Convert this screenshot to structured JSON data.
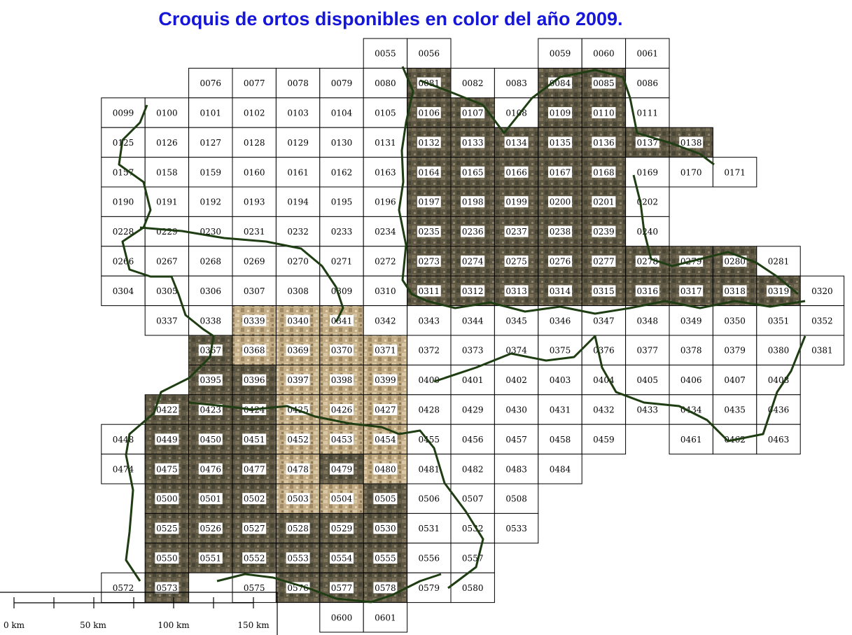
{
  "title": "Croquis de ortos disponibles  en color del año 2009.",
  "scale": {
    "labels": [
      "0 km",
      "50 km",
      "100 km",
      "150 km"
    ]
  },
  "colors": {
    "title": "#1616d8",
    "border": "#1f3d12",
    "ortho": "#5f5845",
    "ortho_sand": "#bfa983"
  },
  "sheets": [
    {
      "id": "0055",
      "row": 0,
      "col": 8
    },
    {
      "id": "0056",
      "row": 0,
      "col": 9
    },
    {
      "id": "0059",
      "row": 0,
      "col": 12
    },
    {
      "id": "0060",
      "row": 0,
      "col": 13
    },
    {
      "id": "0061",
      "row": 0,
      "col": 14
    },
    {
      "id": "0076",
      "row": 1,
      "col": 4
    },
    {
      "id": "0077",
      "row": 1,
      "col": 5
    },
    {
      "id": "0078",
      "row": 1,
      "col": 6
    },
    {
      "id": "0079",
      "row": 1,
      "col": 7
    },
    {
      "id": "0080",
      "row": 1,
      "col": 8
    },
    {
      "id": "0081",
      "row": 1,
      "col": 9,
      "ortho": true
    },
    {
      "id": "0082",
      "row": 1,
      "col": 10
    },
    {
      "id": "0083",
      "row": 1,
      "col": 11
    },
    {
      "id": "0084",
      "row": 1,
      "col": 12,
      "ortho": true
    },
    {
      "id": "0085",
      "row": 1,
      "col": 13,
      "ortho": true
    },
    {
      "id": "0086",
      "row": 1,
      "col": 14
    },
    {
      "id": "0099",
      "row": 2,
      "col": 2
    },
    {
      "id": "0100",
      "row": 2,
      "col": 3
    },
    {
      "id": "0101",
      "row": 2,
      "col": 4
    },
    {
      "id": "0102",
      "row": 2,
      "col": 5
    },
    {
      "id": "0103",
      "row": 2,
      "col": 6
    },
    {
      "id": "0104",
      "row": 2,
      "col": 7
    },
    {
      "id": "0105",
      "row": 2,
      "col": 8
    },
    {
      "id": "0106",
      "row": 2,
      "col": 9,
      "ortho": true
    },
    {
      "id": "0107",
      "row": 2,
      "col": 10,
      "ortho": true
    },
    {
      "id": "0108",
      "row": 2,
      "col": 11
    },
    {
      "id": "0109",
      "row": 2,
      "col": 12,
      "ortho": true
    },
    {
      "id": "0110",
      "row": 2,
      "col": 13,
      "ortho": true
    },
    {
      "id": "0111",
      "row": 2,
      "col": 14
    },
    {
      "id": "0125",
      "row": 3,
      "col": 2
    },
    {
      "id": "0126",
      "row": 3,
      "col": 3
    },
    {
      "id": "0127",
      "row": 3,
      "col": 4
    },
    {
      "id": "0128",
      "row": 3,
      "col": 5
    },
    {
      "id": "0129",
      "row": 3,
      "col": 6
    },
    {
      "id": "0130",
      "row": 3,
      "col": 7
    },
    {
      "id": "0131",
      "row": 3,
      "col": 8
    },
    {
      "id": "0132",
      "row": 3,
      "col": 9,
      "ortho": true
    },
    {
      "id": "0133",
      "row": 3,
      "col": 10,
      "ortho": true
    },
    {
      "id": "0134",
      "row": 3,
      "col": 11,
      "ortho": true
    },
    {
      "id": "0135",
      "row": 3,
      "col": 12,
      "ortho": true
    },
    {
      "id": "0136",
      "row": 3,
      "col": 13,
      "ortho": true
    },
    {
      "id": "0137",
      "row": 3,
      "col": 14,
      "ortho": true
    },
    {
      "id": "0138",
      "row": 3,
      "col": 15,
      "ortho": true
    },
    {
      "id": "0157",
      "row": 4,
      "col": 2
    },
    {
      "id": "0158",
      "row": 4,
      "col": 3
    },
    {
      "id": "0159",
      "row": 4,
      "col": 4
    },
    {
      "id": "0160",
      "row": 4,
      "col": 5
    },
    {
      "id": "0161",
      "row": 4,
      "col": 6
    },
    {
      "id": "0162",
      "row": 4,
      "col": 7
    },
    {
      "id": "0163",
      "row": 4,
      "col": 8
    },
    {
      "id": "0164",
      "row": 4,
      "col": 9,
      "ortho": true
    },
    {
      "id": "0165",
      "row": 4,
      "col": 10,
      "ortho": true
    },
    {
      "id": "0166",
      "row": 4,
      "col": 11,
      "ortho": true
    },
    {
      "id": "0167",
      "row": 4,
      "col": 12,
      "ortho": true
    },
    {
      "id": "0168",
      "row": 4,
      "col": 13,
      "ortho": true
    },
    {
      "id": "0169",
      "row": 4,
      "col": 14
    },
    {
      "id": "0170",
      "row": 4,
      "col": 15
    },
    {
      "id": "0171",
      "row": 4,
      "col": 16
    },
    {
      "id": "0190",
      "row": 5,
      "col": 2
    },
    {
      "id": "0191",
      "row": 5,
      "col": 3
    },
    {
      "id": "0192",
      "row": 5,
      "col": 4
    },
    {
      "id": "0193",
      "row": 5,
      "col": 5
    },
    {
      "id": "0194",
      "row": 5,
      "col": 6
    },
    {
      "id": "0195",
      "row": 5,
      "col": 7
    },
    {
      "id": "0196",
      "row": 5,
      "col": 8
    },
    {
      "id": "0197",
      "row": 5,
      "col": 9,
      "ortho": true
    },
    {
      "id": "0198",
      "row": 5,
      "col": 10,
      "ortho": true
    },
    {
      "id": "0199",
      "row": 5,
      "col": 11,
      "ortho": true
    },
    {
      "id": "0200",
      "row": 5,
      "col": 12,
      "ortho": true
    },
    {
      "id": "0201",
      "row": 5,
      "col": 13,
      "ortho": true
    },
    {
      "id": "0202",
      "row": 5,
      "col": 14
    },
    {
      "id": "0228",
      "row": 6,
      "col": 2
    },
    {
      "id": "0229",
      "row": 6,
      "col": 3
    },
    {
      "id": "0230",
      "row": 6,
      "col": 4
    },
    {
      "id": "0231",
      "row": 6,
      "col": 5
    },
    {
      "id": "0232",
      "row": 6,
      "col": 6
    },
    {
      "id": "0233",
      "row": 6,
      "col": 7
    },
    {
      "id": "0234",
      "row": 6,
      "col": 8
    },
    {
      "id": "0235",
      "row": 6,
      "col": 9,
      "ortho": true
    },
    {
      "id": "0236",
      "row": 6,
      "col": 10,
      "ortho": true
    },
    {
      "id": "0237",
      "row": 6,
      "col": 11,
      "ortho": true
    },
    {
      "id": "0238",
      "row": 6,
      "col": 12,
      "ortho": true
    },
    {
      "id": "0239",
      "row": 6,
      "col": 13,
      "ortho": true
    },
    {
      "id": "0240",
      "row": 6,
      "col": 14
    },
    {
      "id": "0266",
      "row": 7,
      "col": 2
    },
    {
      "id": "0267",
      "row": 7,
      "col": 3
    },
    {
      "id": "0268",
      "row": 7,
      "col": 4
    },
    {
      "id": "0269",
      "row": 7,
      "col": 5
    },
    {
      "id": "0270",
      "row": 7,
      "col": 6
    },
    {
      "id": "0271",
      "row": 7,
      "col": 7
    },
    {
      "id": "0272",
      "row": 7,
      "col": 8
    },
    {
      "id": "0273",
      "row": 7,
      "col": 9,
      "ortho": true
    },
    {
      "id": "0274",
      "row": 7,
      "col": 10,
      "ortho": true
    },
    {
      "id": "0275",
      "row": 7,
      "col": 11,
      "ortho": true
    },
    {
      "id": "0276",
      "row": 7,
      "col": 12,
      "ortho": true
    },
    {
      "id": "0277",
      "row": 7,
      "col": 13,
      "ortho": true
    },
    {
      "id": "0278",
      "row": 7,
      "col": 14,
      "ortho": true
    },
    {
      "id": "0279",
      "row": 7,
      "col": 15,
      "ortho": true
    },
    {
      "id": "0280",
      "row": 7,
      "col": 16,
      "ortho": true
    },
    {
      "id": "0281",
      "row": 7,
      "col": 17
    },
    {
      "id": "0304",
      "row": 8,
      "col": 2
    },
    {
      "id": "0305",
      "row": 8,
      "col": 3
    },
    {
      "id": "0306",
      "row": 8,
      "col": 4
    },
    {
      "id": "0307",
      "row": 8,
      "col": 5
    },
    {
      "id": "0308",
      "row": 8,
      "col": 6
    },
    {
      "id": "0309",
      "row": 8,
      "col": 7
    },
    {
      "id": "0310",
      "row": 8,
      "col": 8
    },
    {
      "id": "0311",
      "row": 8,
      "col": 9,
      "ortho": true
    },
    {
      "id": "0312",
      "row": 8,
      "col": 10,
      "ortho": true
    },
    {
      "id": "0313",
      "row": 8,
      "col": 11,
      "ortho": true
    },
    {
      "id": "0314",
      "row": 8,
      "col": 12,
      "ortho": true
    },
    {
      "id": "0315",
      "row": 8,
      "col": 13,
      "ortho": true
    },
    {
      "id": "0316",
      "row": 8,
      "col": 14,
      "ortho": true
    },
    {
      "id": "0317",
      "row": 8,
      "col": 15,
      "ortho": true
    },
    {
      "id": "0318",
      "row": 8,
      "col": 16,
      "ortho": true
    },
    {
      "id": "0319",
      "row": 8,
      "col": 17,
      "ortho": true
    },
    {
      "id": "0320",
      "row": 8,
      "col": 18
    },
    {
      "id": "0337",
      "row": 9,
      "col": 3
    },
    {
      "id": "0338",
      "row": 9,
      "col": 4
    },
    {
      "id": "0339",
      "row": 9,
      "col": 5,
      "ortho": true,
      "sand": true
    },
    {
      "id": "0340",
      "row": 9,
      "col": 6,
      "ortho": true,
      "sand": true
    },
    {
      "id": "0341",
      "row": 9,
      "col": 7,
      "ortho": true,
      "sand": true
    },
    {
      "id": "0342",
      "row": 9,
      "col": 8
    },
    {
      "id": "0343",
      "row": 9,
      "col": 9
    },
    {
      "id": "0344",
      "row": 9,
      "col": 10
    },
    {
      "id": "0345",
      "row": 9,
      "col": 11
    },
    {
      "id": "0346",
      "row": 9,
      "col": 12
    },
    {
      "id": "0347",
      "row": 9,
      "col": 13
    },
    {
      "id": "0348",
      "row": 9,
      "col": 14
    },
    {
      "id": "0349",
      "row": 9,
      "col": 15
    },
    {
      "id": "0350",
      "row": 9,
      "col": 16
    },
    {
      "id": "0351",
      "row": 9,
      "col": 17
    },
    {
      "id": "0352",
      "row": 9,
      "col": 18
    },
    {
      "id": "0367",
      "row": 10,
      "col": 4,
      "ortho": true
    },
    {
      "id": "0368",
      "row": 10,
      "col": 5,
      "ortho": true,
      "sand": true
    },
    {
      "id": "0369",
      "row": 10,
      "col": 6,
      "ortho": true,
      "sand": true
    },
    {
      "id": "0370",
      "row": 10,
      "col": 7,
      "ortho": true,
      "sand": true
    },
    {
      "id": "0371",
      "row": 10,
      "col": 8,
      "ortho": true,
      "sand": true
    },
    {
      "id": "0372",
      "row": 10,
      "col": 9
    },
    {
      "id": "0373",
      "row": 10,
      "col": 10
    },
    {
      "id": "0374",
      "row": 10,
      "col": 11
    },
    {
      "id": "0375",
      "row": 10,
      "col": 12
    },
    {
      "id": "0376",
      "row": 10,
      "col": 13
    },
    {
      "id": "0377",
      "row": 10,
      "col": 14
    },
    {
      "id": "0378",
      "row": 10,
      "col": 15
    },
    {
      "id": "0379",
      "row": 10,
      "col": 16
    },
    {
      "id": "0380",
      "row": 10,
      "col": 17
    },
    {
      "id": "0381",
      "row": 10,
      "col": 18
    },
    {
      "id": "0395",
      "row": 11,
      "col": 4,
      "ortho": true
    },
    {
      "id": "0396",
      "row": 11,
      "col": 5,
      "ortho": true
    },
    {
      "id": "0397",
      "row": 11,
      "col": 6,
      "ortho": true,
      "sand": true
    },
    {
      "id": "0398",
      "row": 11,
      "col": 7,
      "ortho": true,
      "sand": true
    },
    {
      "id": "0399",
      "row": 11,
      "col": 8,
      "ortho": true,
      "sand": true
    },
    {
      "id": "0400",
      "row": 11,
      "col": 9
    },
    {
      "id": "0401",
      "row": 11,
      "col": 10
    },
    {
      "id": "0402",
      "row": 11,
      "col": 11
    },
    {
      "id": "0403",
      "row": 11,
      "col": 12
    },
    {
      "id": "0404",
      "row": 11,
      "col": 13
    },
    {
      "id": "0405",
      "row": 11,
      "col": 14
    },
    {
      "id": "0406",
      "row": 11,
      "col": 15
    },
    {
      "id": "0407",
      "row": 11,
      "col": 16
    },
    {
      "id": "0408",
      "row": 11,
      "col": 17
    },
    {
      "id": "0422",
      "row": 12,
      "col": 3,
      "ortho": true
    },
    {
      "id": "0423",
      "row": 12,
      "col": 4,
      "ortho": true
    },
    {
      "id": "0424",
      "row": 12,
      "col": 5,
      "ortho": true
    },
    {
      "id": "0425",
      "row": 12,
      "col": 6,
      "ortho": true,
      "sand": true
    },
    {
      "id": "0426",
      "row": 12,
      "col": 7,
      "ortho": true,
      "sand": true
    },
    {
      "id": "0427",
      "row": 12,
      "col": 8,
      "ortho": true,
      "sand": true
    },
    {
      "id": "0428",
      "row": 12,
      "col": 9
    },
    {
      "id": "0429",
      "row": 12,
      "col": 10
    },
    {
      "id": "0430",
      "row": 12,
      "col": 11
    },
    {
      "id": "0431",
      "row": 12,
      "col": 12
    },
    {
      "id": "0432",
      "row": 12,
      "col": 13
    },
    {
      "id": "0433",
      "row": 12,
      "col": 14
    },
    {
      "id": "0434",
      "row": 12,
      "col": 15
    },
    {
      "id": "0435",
      "row": 12,
      "col": 16
    },
    {
      "id": "0436",
      "row": 12,
      "col": 17
    },
    {
      "id": "0448",
      "row": 13,
      "col": 2
    },
    {
      "id": "0449",
      "row": 13,
      "col": 3,
      "ortho": true
    },
    {
      "id": "0450",
      "row": 13,
      "col": 4,
      "ortho": true
    },
    {
      "id": "0451",
      "row": 13,
      "col": 5,
      "ortho": true
    },
    {
      "id": "0452",
      "row": 13,
      "col": 6,
      "ortho": true,
      "sand": true
    },
    {
      "id": "0453",
      "row": 13,
      "col": 7,
      "ortho": true,
      "sand": true
    },
    {
      "id": "0454",
      "row": 13,
      "col": 8,
      "ortho": true,
      "sand": true
    },
    {
      "id": "0455",
      "row": 13,
      "col": 9
    },
    {
      "id": "0456",
      "row": 13,
      "col": 10
    },
    {
      "id": "0457",
      "row": 13,
      "col": 11
    },
    {
      "id": "0458",
      "row": 13,
      "col": 12
    },
    {
      "id": "0459",
      "row": 13,
      "col": 13
    },
    {
      "id": "0461",
      "row": 13,
      "col": 15
    },
    {
      "id": "0462",
      "row": 13,
      "col": 16
    },
    {
      "id": "0463",
      "row": 13,
      "col": 17
    },
    {
      "id": "0474",
      "row": 14,
      "col": 2
    },
    {
      "id": "0475",
      "row": 14,
      "col": 3,
      "ortho": true
    },
    {
      "id": "0476",
      "row": 14,
      "col": 4,
      "ortho": true
    },
    {
      "id": "0477",
      "row": 14,
      "col": 5,
      "ortho": true
    },
    {
      "id": "0478",
      "row": 14,
      "col": 6,
      "ortho": true,
      "sand": true
    },
    {
      "id": "0479",
      "row": 14,
      "col": 7,
      "ortho": true
    },
    {
      "id": "0480",
      "row": 14,
      "col": 8,
      "ortho": true,
      "sand": true
    },
    {
      "id": "0481",
      "row": 14,
      "col": 9
    },
    {
      "id": "0482",
      "row": 14,
      "col": 10
    },
    {
      "id": "0483",
      "row": 14,
      "col": 11
    },
    {
      "id": "0484",
      "row": 14,
      "col": 12
    },
    {
      "id": "0500",
      "row": 15,
      "col": 3,
      "ortho": true
    },
    {
      "id": "0501",
      "row": 15,
      "col": 4,
      "ortho": true
    },
    {
      "id": "0502",
      "row": 15,
      "col": 5,
      "ortho": true
    },
    {
      "id": "0503",
      "row": 15,
      "col": 6,
      "ortho": true,
      "sand": true
    },
    {
      "id": "0504",
      "row": 15,
      "col": 7,
      "ortho": true,
      "sand": true
    },
    {
      "id": "0505",
      "row": 15,
      "col": 8,
      "ortho": true
    },
    {
      "id": "0506",
      "row": 15,
      "col": 9
    },
    {
      "id": "0507",
      "row": 15,
      "col": 10
    },
    {
      "id": "0508",
      "row": 15,
      "col": 11
    },
    {
      "id": "0525",
      "row": 16,
      "col": 3,
      "ortho": true
    },
    {
      "id": "0526",
      "row": 16,
      "col": 4,
      "ortho": true
    },
    {
      "id": "0527",
      "row": 16,
      "col": 5,
      "ortho": true
    },
    {
      "id": "0528",
      "row": 16,
      "col": 6,
      "ortho": true
    },
    {
      "id": "0529",
      "row": 16,
      "col": 7,
      "ortho": true
    },
    {
      "id": "0530",
      "row": 16,
      "col": 8,
      "ortho": true
    },
    {
      "id": "0531",
      "row": 16,
      "col": 9
    },
    {
      "id": "0532",
      "row": 16,
      "col": 10
    },
    {
      "id": "0533",
      "row": 16,
      "col": 11
    },
    {
      "id": "0550",
      "row": 17,
      "col": 3,
      "ortho": true
    },
    {
      "id": "0551",
      "row": 17,
      "col": 4,
      "ortho": true
    },
    {
      "id": "0552",
      "row": 17,
      "col": 5,
      "ortho": true
    },
    {
      "id": "0553",
      "row": 17,
      "col": 6,
      "ortho": true
    },
    {
      "id": "0554",
      "row": 17,
      "col": 7,
      "ortho": true
    },
    {
      "id": "0555",
      "row": 17,
      "col": 8,
      "ortho": true
    },
    {
      "id": "0556",
      "row": 17,
      "col": 9
    },
    {
      "id": "0557",
      "row": 17,
      "col": 10
    },
    {
      "id": "0572",
      "row": 18,
      "col": 2
    },
    {
      "id": "0573",
      "row": 18,
      "col": 3,
      "ortho": true
    },
    {
      "id": "0575",
      "row": 18,
      "col": 5
    },
    {
      "id": "0576",
      "row": 18,
      "col": 6,
      "ortho": true
    },
    {
      "id": "0577",
      "row": 18,
      "col": 7,
      "ortho": true
    },
    {
      "id": "0578",
      "row": 18,
      "col": 8,
      "ortho": true
    },
    {
      "id": "0579",
      "row": 18,
      "col": 9
    },
    {
      "id": "0580",
      "row": 18,
      "col": 10
    },
    {
      "id": "0600",
      "row": 19,
      "col": 7
    },
    {
      "id": "0601",
      "row": 19,
      "col": 8
    }
  ]
}
